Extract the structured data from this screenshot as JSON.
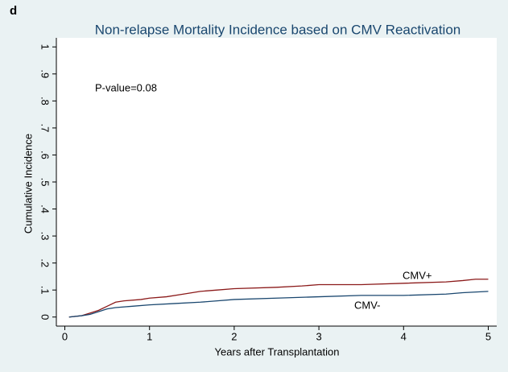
{
  "panel_label": "d",
  "chart_data": {
    "type": "line",
    "title": "Non-relapse Mortality Incidence based on CMV Reactivation",
    "xlabel": "Years after Transplantation",
    "ylabel": "Cumulative Incidence",
    "annotations": [
      "P-value=0.08"
    ],
    "xlim": [
      -0.1,
      5.1
    ],
    "ylim": [
      -0.0336,
      1.0336
    ],
    "xticks": [
      0,
      1,
      2,
      3,
      4,
      5
    ],
    "yticks": [
      0,
      {
        "value": 0.1,
        "label": ".1"
      },
      {
        "value": 0.2,
        "label": ".2"
      },
      {
        "value": 0.3,
        "label": ".3"
      },
      {
        "value": 0.4,
        "label": ".4"
      },
      {
        "value": 0.5,
        "label": ".5"
      },
      {
        "value": 0.6,
        "label": ".6"
      },
      {
        "value": 0.7,
        "label": ".7"
      },
      {
        "value": 0.8,
        "label": ".8"
      },
      {
        "value": 0.9,
        "label": ".9"
      },
      1
    ],
    "grid": false,
    "series": [
      {
        "name": "CMV+",
        "color": "#8b1a1a",
        "x": [
          0.05,
          0.2,
          0.3,
          0.4,
          0.5,
          0.6,
          0.7,
          0.9,
          1.0,
          1.2,
          1.4,
          1.6,
          1.8,
          2.0,
          2.5,
          2.8,
          3.0,
          3.5,
          4.0,
          4.5,
          4.7,
          4.85,
          5.0
        ],
        "values": [
          0,
          0.005,
          0.015,
          0.025,
          0.04,
          0.055,
          0.06,
          0.065,
          0.07,
          0.075,
          0.085,
          0.095,
          0.1,
          0.105,
          0.11,
          0.115,
          0.12,
          0.12,
          0.125,
          0.13,
          0.135,
          0.14,
          0.14
        ]
      },
      {
        "name": "CMV-",
        "color": "#1a476f",
        "x": [
          0.05,
          0.2,
          0.3,
          0.4,
          0.5,
          0.6,
          0.8,
          1.0,
          1.3,
          1.6,
          1.8,
          2.0,
          2.5,
          3.0,
          3.5,
          4.0,
          4.5,
          4.7,
          5.0
        ],
        "values": [
          0,
          0.005,
          0.01,
          0.02,
          0.03,
          0.035,
          0.04,
          0.045,
          0.05,
          0.055,
          0.06,
          0.065,
          0.07,
          0.075,
          0.08,
          0.08,
          0.085,
          0.09,
          0.095
        ]
      }
    ]
  }
}
